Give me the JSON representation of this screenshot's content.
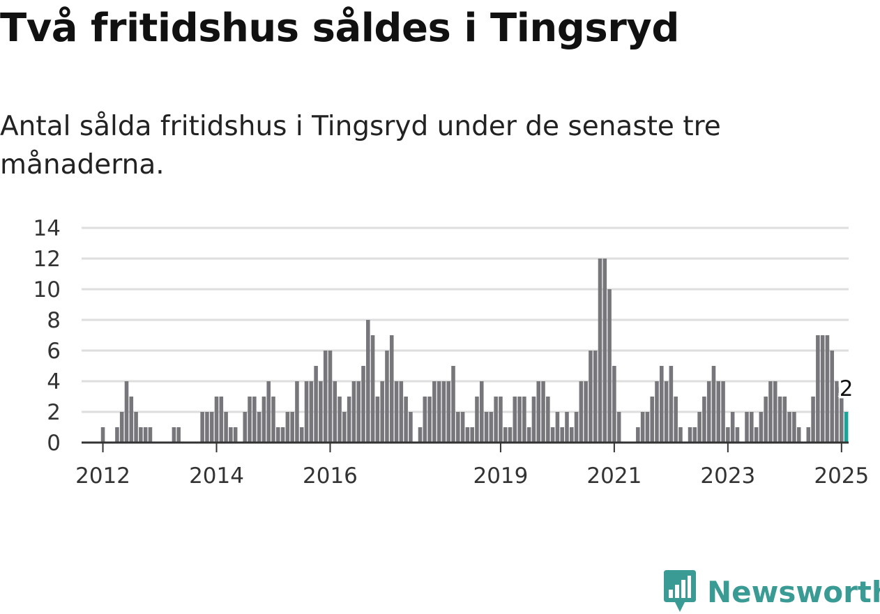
{
  "title": "Två fritidshus såldes i Tingsryd",
  "subtitle": "Antal sålda fritidshus i Tingsryd under de senaste tre månaderna.",
  "brand": "Newsworthy",
  "colors": {
    "bar": "#77767b",
    "highlight": "#1aa396",
    "grid": "#dedede",
    "axis": "#333333",
    "brand": "#3a9b94"
  },
  "chart_data": {
    "type": "bar",
    "x_start": "2011-09",
    "x_end": "2025-02",
    "xticks": [
      {
        "date": "2012-01",
        "label": "2012"
      },
      {
        "date": "2014-01",
        "label": "2014"
      },
      {
        "date": "2016-01",
        "label": "2016"
      },
      {
        "date": "2019-01",
        "label": "2019"
      },
      {
        "date": "2021-01",
        "label": "2021"
      },
      {
        "date": "2023-01",
        "label": "2023"
      },
      {
        "date": "2025-01",
        "label": "2025"
      }
    ],
    "yticks": [
      0,
      2,
      4,
      6,
      8,
      10,
      12,
      14
    ],
    "ylim": [
      0,
      14
    ],
    "values": [
      0,
      0,
      0,
      0,
      1,
      0,
      0,
      1,
      2,
      4,
      3,
      2,
      1,
      1,
      1,
      0,
      0,
      0,
      0,
      1,
      1,
      0,
      0,
      0,
      0,
      2,
      2,
      2,
      3,
      3,
      2,
      1,
      1,
      0,
      2,
      3,
      3,
      2,
      3,
      4,
      3,
      1,
      1,
      2,
      2,
      4,
      1,
      4,
      4,
      5,
      4,
      6,
      6,
      4,
      3,
      2,
      3,
      4,
      4,
      5,
      8,
      7,
      3,
      4,
      6,
      7,
      4,
      4,
      3,
      2,
      0,
      1,
      3,
      3,
      4,
      4,
      4,
      4,
      5,
      2,
      2,
      1,
      1,
      3,
      4,
      2,
      2,
      3,
      3,
      1,
      1,
      3,
      3,
      3,
      1,
      3,
      4,
      4,
      3,
      1,
      2,
      1,
      2,
      1,
      2,
      4,
      4,
      6,
      6,
      12,
      12,
      10,
      5,
      2,
      0,
      0,
      0,
      1,
      2,
      2,
      3,
      4,
      5,
      4,
      5,
      3,
      1,
      0,
      1,
      1,
      2,
      3,
      4,
      5,
      4,
      4,
      1,
      2,
      1,
      0,
      2,
      2,
      1,
      2,
      3,
      4,
      4,
      3,
      3,
      2,
      2,
      1,
      0,
      1,
      3,
      7,
      7,
      7,
      6,
      4,
      3,
      2
    ],
    "highlight_index": 161,
    "annotation": "2"
  }
}
